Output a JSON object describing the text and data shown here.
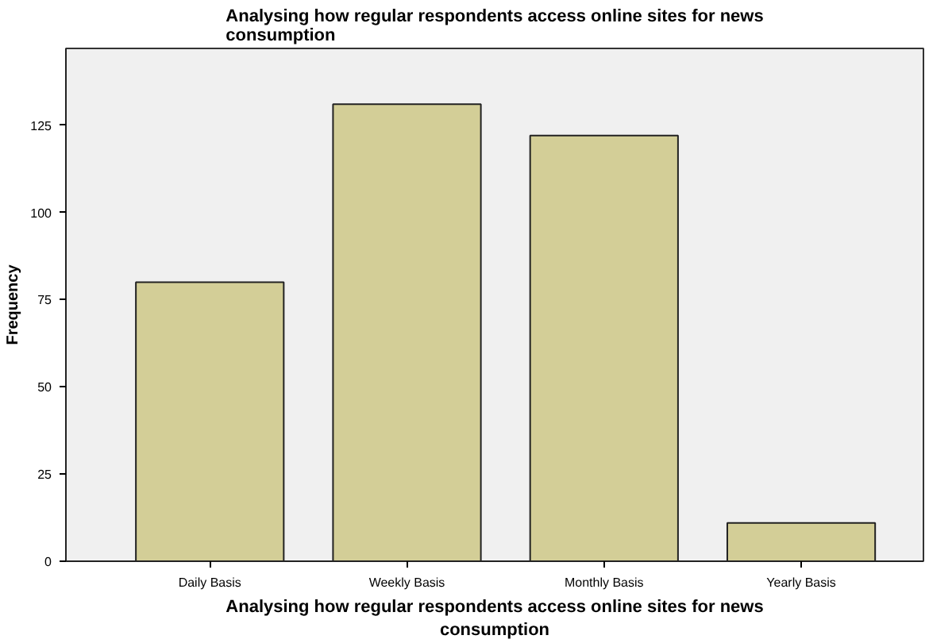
{
  "chart_data": {
    "type": "bar",
    "title": "Analysing how regular respondents access online sites for news consumption",
    "xlabel": "Analysing how regular respondents access online sites for news consumption",
    "ylabel": "Frequency",
    "categories": [
      "Daily Basis",
      "Weekly Basis",
      "Monthly Basis",
      "Yearly Basis"
    ],
    "values": [
      80,
      131,
      122,
      11
    ],
    "color": "#d3ce97",
    "ylim": [
      0,
      147
    ],
    "yticks": [
      0,
      25,
      50,
      75,
      100,
      125
    ],
    "grid": false
  }
}
